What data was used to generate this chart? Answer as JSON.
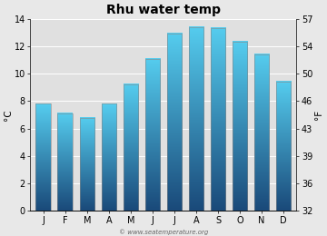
{
  "title": "Rhu water temp",
  "months": [
    "J",
    "F",
    "M",
    "A",
    "M",
    "J",
    "J",
    "A",
    "S",
    "O",
    "N",
    "D"
  ],
  "values_c": [
    7.8,
    7.1,
    6.8,
    7.8,
    9.2,
    11.1,
    12.9,
    13.4,
    13.3,
    12.3,
    11.4,
    9.4
  ],
  "ylim_c": [
    0,
    14
  ],
  "yticks_c": [
    0,
    2,
    4,
    6,
    8,
    10,
    12,
    14
  ],
  "yticks_f": [
    32,
    36,
    39,
    43,
    46,
    50,
    54,
    57
  ],
  "ylabel_left": "°C",
  "ylabel_right": "°F",
  "bar_color_top": "#55CCEE",
  "bar_color_bottom": "#1A4A7A",
  "bg_color": "#e8e8e8",
  "plot_bg_color": "#e0e0e0",
  "grid_color": "#ffffff",
  "title_fontsize": 10,
  "axis_fontsize": 7.5,
  "tick_fontsize": 7,
  "watermark": "© www.seatemperature.org",
  "bar_width": 0.7
}
